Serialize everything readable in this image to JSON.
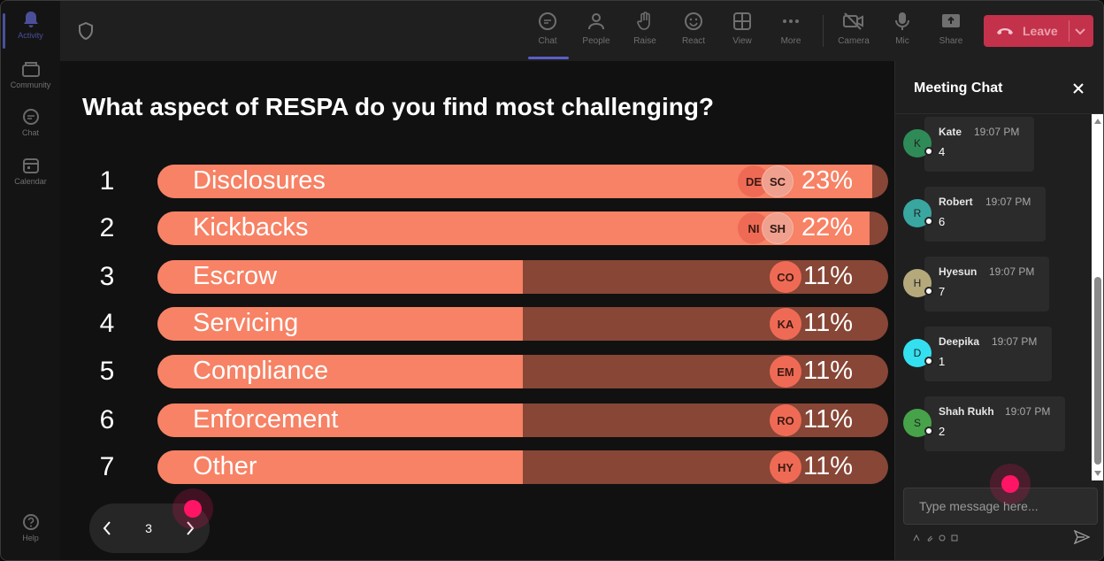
{
  "rail": {
    "items": [
      {
        "label": "Activity",
        "icon": "bell-icon"
      },
      {
        "label": "Community",
        "icon": "community-icon"
      },
      {
        "label": "Chat",
        "icon": "chat-icon"
      },
      {
        "label": "Calendar",
        "icon": "calendar-icon"
      },
      {
        "label": "Help",
        "icon": "help-icon"
      }
    ]
  },
  "toolbar": {
    "items": [
      {
        "label": "Chat",
        "icon": "chat-icon",
        "active": true
      },
      {
        "label": "People",
        "icon": "people-icon"
      },
      {
        "label": "Raise",
        "icon": "raise-hand-icon"
      },
      {
        "label": "React",
        "icon": "react-icon"
      },
      {
        "label": "View",
        "icon": "view-icon"
      },
      {
        "label": "More",
        "icon": "more-icon"
      },
      {
        "label": "Camera",
        "icon": "camera-off-icon"
      },
      {
        "label": "Mic",
        "icon": "mic-icon"
      },
      {
        "label": "Share",
        "icon": "share-icon"
      }
    ],
    "leave_label": "Leave",
    "leave_color": "#c4314b"
  },
  "poll": {
    "question": "What aspect of RESPA do you find most challenging?",
    "options": [
      {
        "num": "1",
        "label": "Disclosures",
        "pct_text": "23%",
        "fraction": 0.978,
        "avatars": [
          "DE",
          "SC"
        ]
      },
      {
        "num": "2",
        "label": "Kickbacks",
        "pct_text": "22%",
        "fraction": 0.975,
        "avatars": [
          "NI",
          "SH"
        ]
      },
      {
        "num": "3",
        "label": "Escrow",
        "pct_text": "11%",
        "fraction": 0.5,
        "avatars": [
          "CO"
        ]
      },
      {
        "num": "4",
        "label": "Servicing",
        "pct_text": "11%",
        "fraction": 0.5,
        "avatars": [
          "KA"
        ]
      },
      {
        "num": "5",
        "label": "Compliance",
        "pct_text": "11%",
        "fraction": 0.5,
        "avatars": [
          "EM"
        ]
      },
      {
        "num": "6",
        "label": "Enforcement",
        "pct_text": "11%",
        "fraction": 0.5,
        "avatars": [
          "RO"
        ]
      },
      {
        "num": "7",
        "label": "Other",
        "pct_text": "11%",
        "fraction": 0.5,
        "avatars": [
          "HY"
        ]
      }
    ],
    "bar_color": "#f78265",
    "track_color": "#874636",
    "page": "3"
  },
  "chat": {
    "title": "Meeting Chat",
    "messages": [
      {
        "initial": "K",
        "name": "Kate",
        "time": "19:07 PM",
        "text": "4",
        "color": "#2e8b57"
      },
      {
        "initial": "R",
        "name": "Robert",
        "time": "19:07 PM",
        "text": "6",
        "color": "#3aa6a0"
      },
      {
        "initial": "H",
        "name": "Hyesun",
        "time": "19:07 PM",
        "text": "7",
        "color": "#b5a97c"
      },
      {
        "initial": "D",
        "name": "Deepika",
        "time": "19:07 PM",
        "text": "1",
        "color": "#34e0f0"
      },
      {
        "initial": "S",
        "name": "Shah Rukh",
        "time": "19:07 PM",
        "text": "2",
        "color": "#46a34a"
      }
    ],
    "input_placeholder": "Type message here..."
  }
}
